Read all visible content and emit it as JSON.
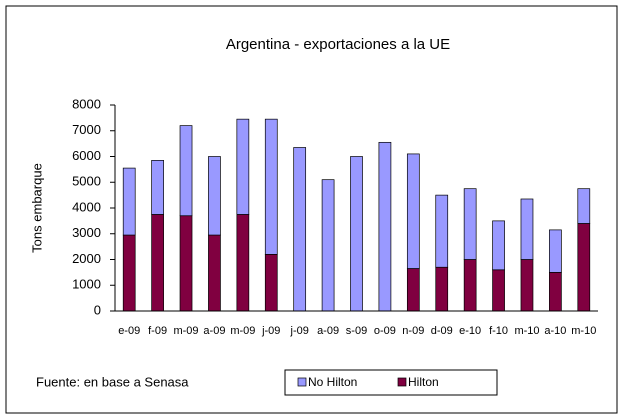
{
  "chart_data": {
    "type": "stacked_bar",
    "title": "Argentina - exportaciones  a la UE",
    "y_label": "Tons embarque",
    "categories": [
      "e-09",
      "f-09",
      "m-09",
      "a-09",
      "m-09",
      "j-09",
      "j-09",
      "a-09",
      "s-09",
      "o-09",
      "n-09",
      "d-09",
      "e-10",
      "f-10",
      "m-10",
      "a-10",
      "m-10"
    ],
    "series": [
      {
        "name": "No Hilton",
        "color": "#9999ff",
        "values": [
          2600,
          2100,
          3500,
          3050,
          3700,
          5250,
          6350,
          5100,
          6000,
          6550,
          4450,
          2800,
          2750,
          1900,
          2350,
          1650,
          1350
        ]
      },
      {
        "name": "Hilton",
        "color": "#800040",
        "values": [
          2950,
          3750,
          3700,
          2950,
          3750,
          2200,
          0,
          0,
          0,
          0,
          1650,
          1700,
          2000,
          1600,
          2000,
          1500,
          3400
        ]
      }
    ],
    "ylim": [
      0,
      8000
    ],
    "yticks": [
      0,
      1000,
      2000,
      3000,
      4000,
      5000,
      6000,
      7000,
      8000
    ],
    "note": "Fuente: en base a Senasa",
    "legend": "bottom"
  }
}
